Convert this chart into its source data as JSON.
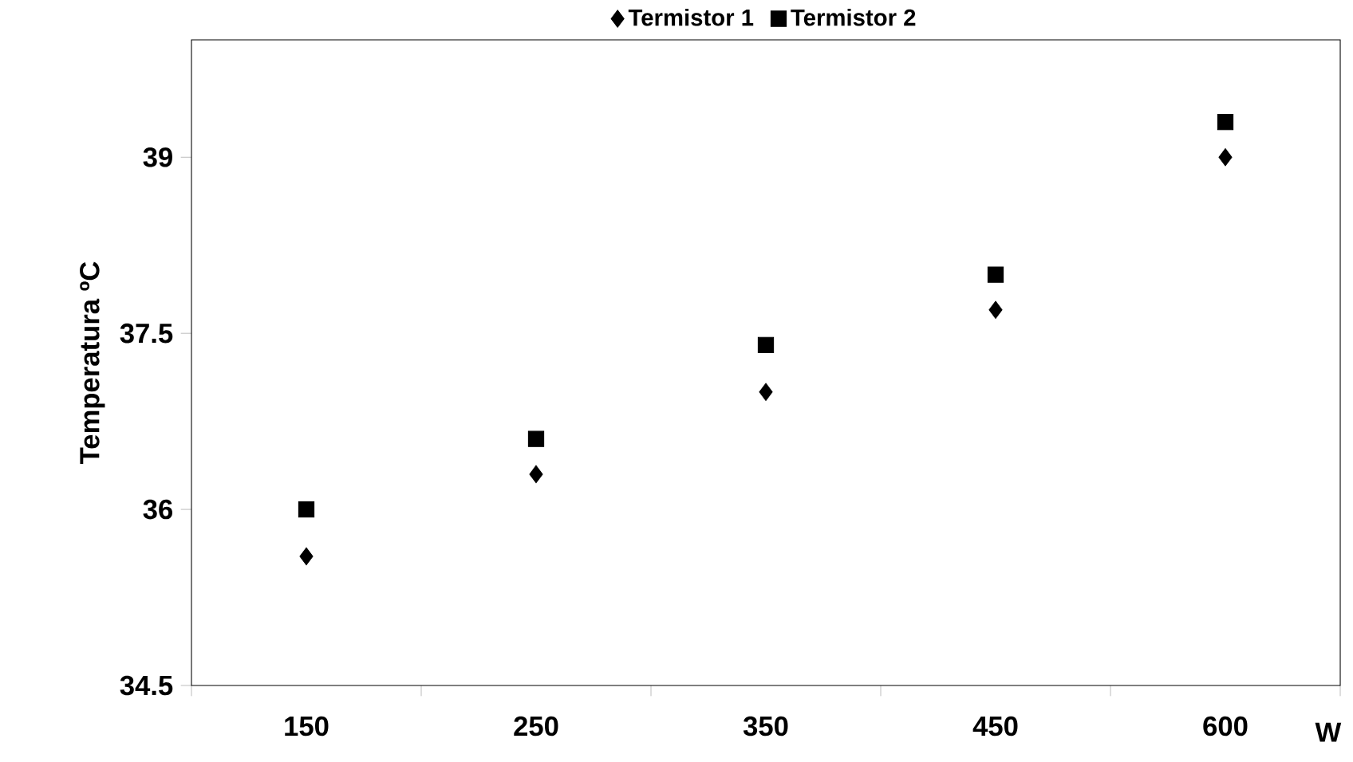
{
  "chart_data": {
    "type": "scatter",
    "xlabel": "W",
    "ylabel": "Temperatura ºC",
    "categories": [
      "150",
      "250",
      "350",
      "450",
      "600"
    ],
    "series": [
      {
        "name": "Termistor 1",
        "color": "#000000",
        "marker": "diamond",
        "values": [
          35.6,
          36.3,
          37.0,
          37.7,
          39.0
        ]
      },
      {
        "name": "Termistor 2",
        "color": "#000000",
        "marker": "square",
        "values": [
          36.0,
          36.6,
          37.4,
          38.0,
          39.3
        ]
      }
    ],
    "ylim": [
      34.5,
      40
    ],
    "yticks": [
      34.5,
      36,
      37.5,
      39
    ],
    "grid": false,
    "legend": "top"
  }
}
